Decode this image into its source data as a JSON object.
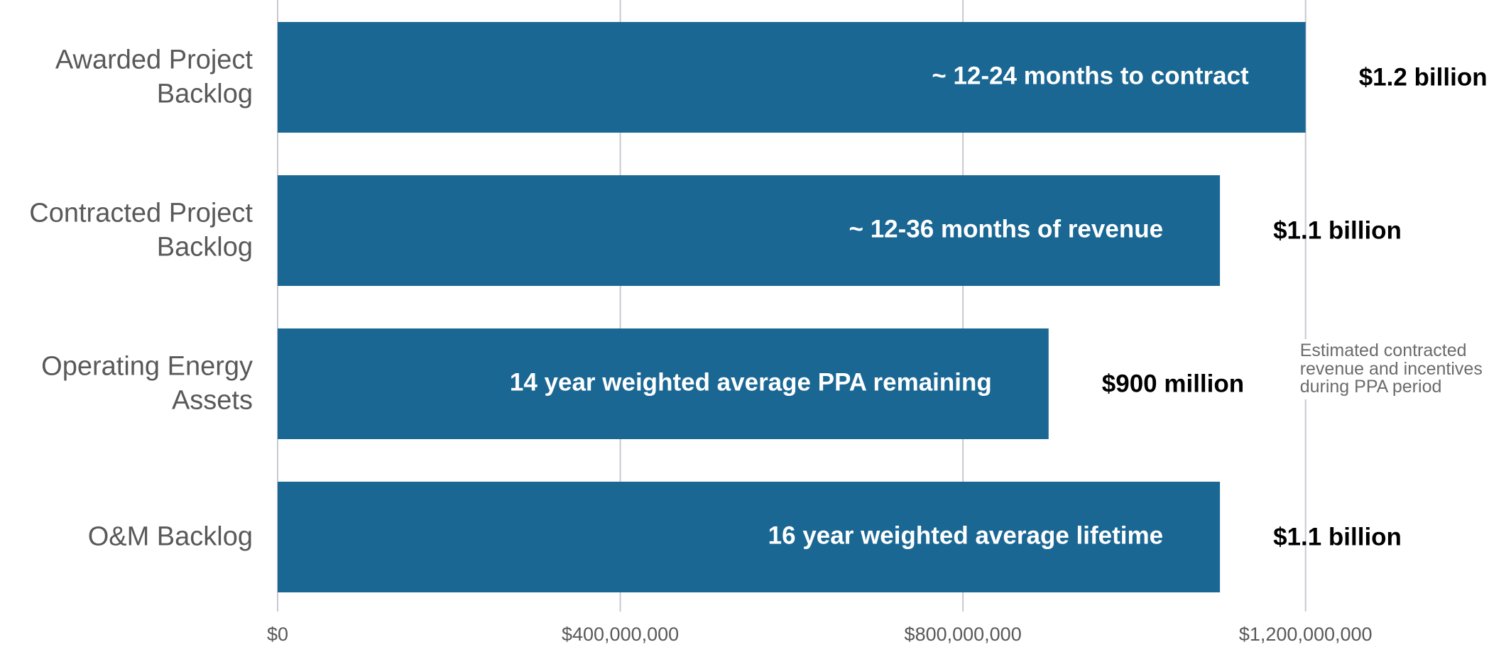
{
  "chart_data": {
    "type": "barh",
    "categories": [
      "Awarded Project Backlog",
      "Contracted Project Backlog",
      "Operating Energy Assets",
      "O&M Backlog"
    ],
    "values": [
      1200000000,
      1100000000,
      900000000,
      1100000000
    ],
    "value_labels": [
      "$1.2 billion",
      "$1.1 billion",
      "$900 million",
      "$1.1 billion"
    ],
    "bar_labels": [
      "~ 12-24 months to contract",
      "~ 12-36 months of revenue",
      "14 year weighted average PPA remaining",
      "16 year weighted average lifetime"
    ],
    "note": "Estimated contracted revenue and incentives during PPA period",
    "color": "#1a6794",
    "xlim": [
      0,
      1400000000
    ],
    "xticks": [
      {
        "value": 0,
        "label": "$0"
      },
      {
        "value": 400000000,
        "label": "$400,000,000"
      },
      {
        "value": 800000000,
        "label": "$800,000,000"
      },
      {
        "value": 1200000000,
        "label": "$1,200,000,000"
      }
    ],
    "grid": true
  }
}
